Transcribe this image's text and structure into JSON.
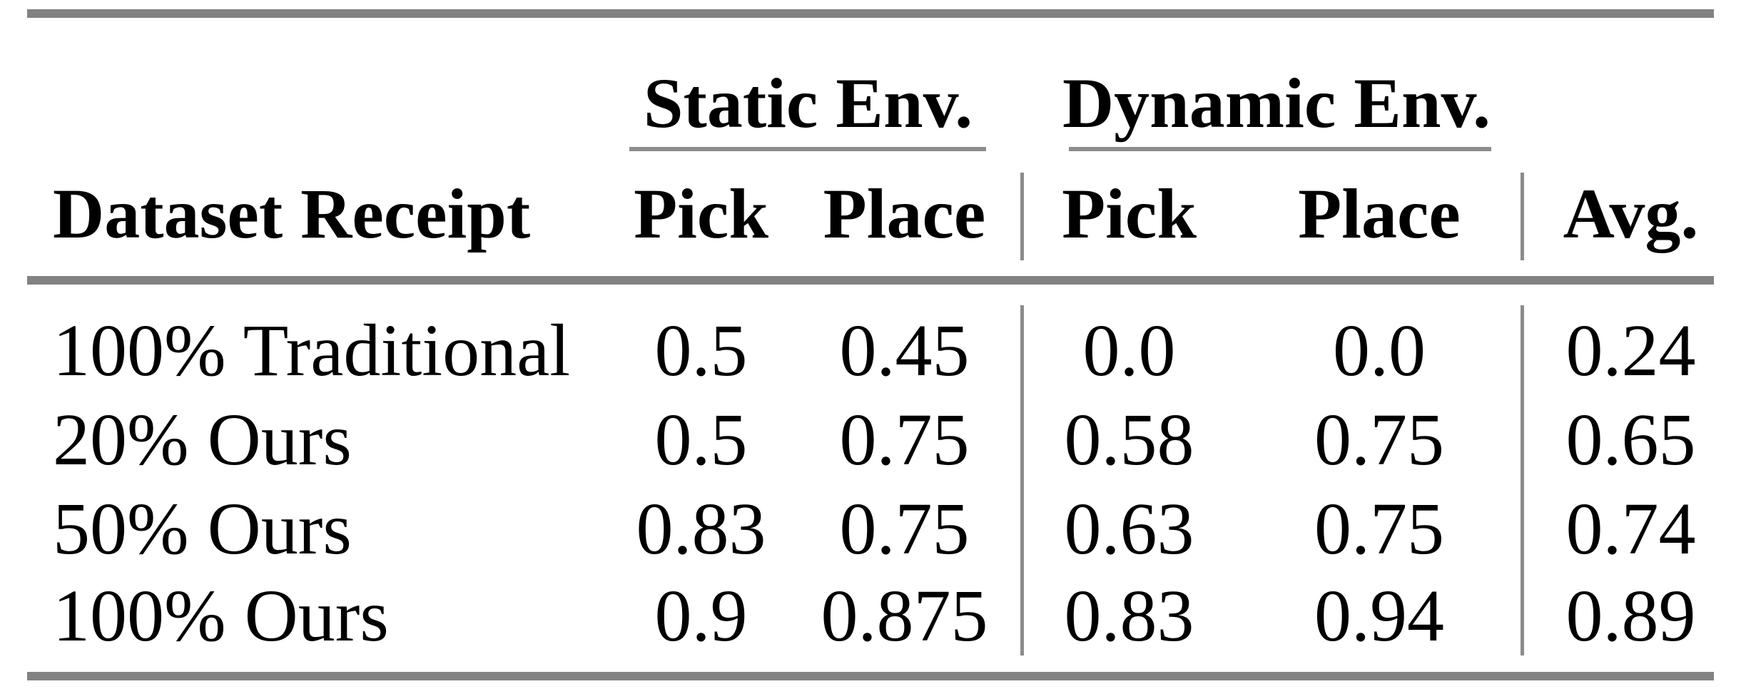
{
  "table": {
    "group_headers": {
      "static": "Static Env.",
      "dynamic": "Dynamic Env."
    },
    "headers": {
      "dataset": "Dataset Receipt",
      "static_pick": "Pick",
      "static_place": "Place",
      "dynamic_pick": "Pick",
      "dynamic_place": "Place",
      "avg": "Avg."
    },
    "rows": [
      {
        "label": "100% Traditional",
        "static_pick": "0.5",
        "static_place": "0.45",
        "dynamic_pick": "0.0",
        "dynamic_place": "0.0",
        "avg": "0.24"
      },
      {
        "label": "20% Ours",
        "static_pick": "0.5",
        "static_place": "0.75",
        "dynamic_pick": "0.58",
        "dynamic_place": "0.75",
        "avg": "0.65"
      },
      {
        "label": "50% Ours",
        "static_pick": "0.83",
        "static_place": "0.75",
        "dynamic_pick": "0.63",
        "dynamic_place": "0.75",
        "avg": "0.74"
      },
      {
        "label": "100% Ours",
        "static_pick": "0.9",
        "static_place": "0.875",
        "dynamic_pick": "0.83",
        "dynamic_place": "0.94",
        "avg": "0.89"
      }
    ]
  },
  "colors": {
    "rule_heavy": "#828282",
    "rule_light": "#8c8c8c",
    "text": "#000000",
    "background": "#ffffff"
  }
}
